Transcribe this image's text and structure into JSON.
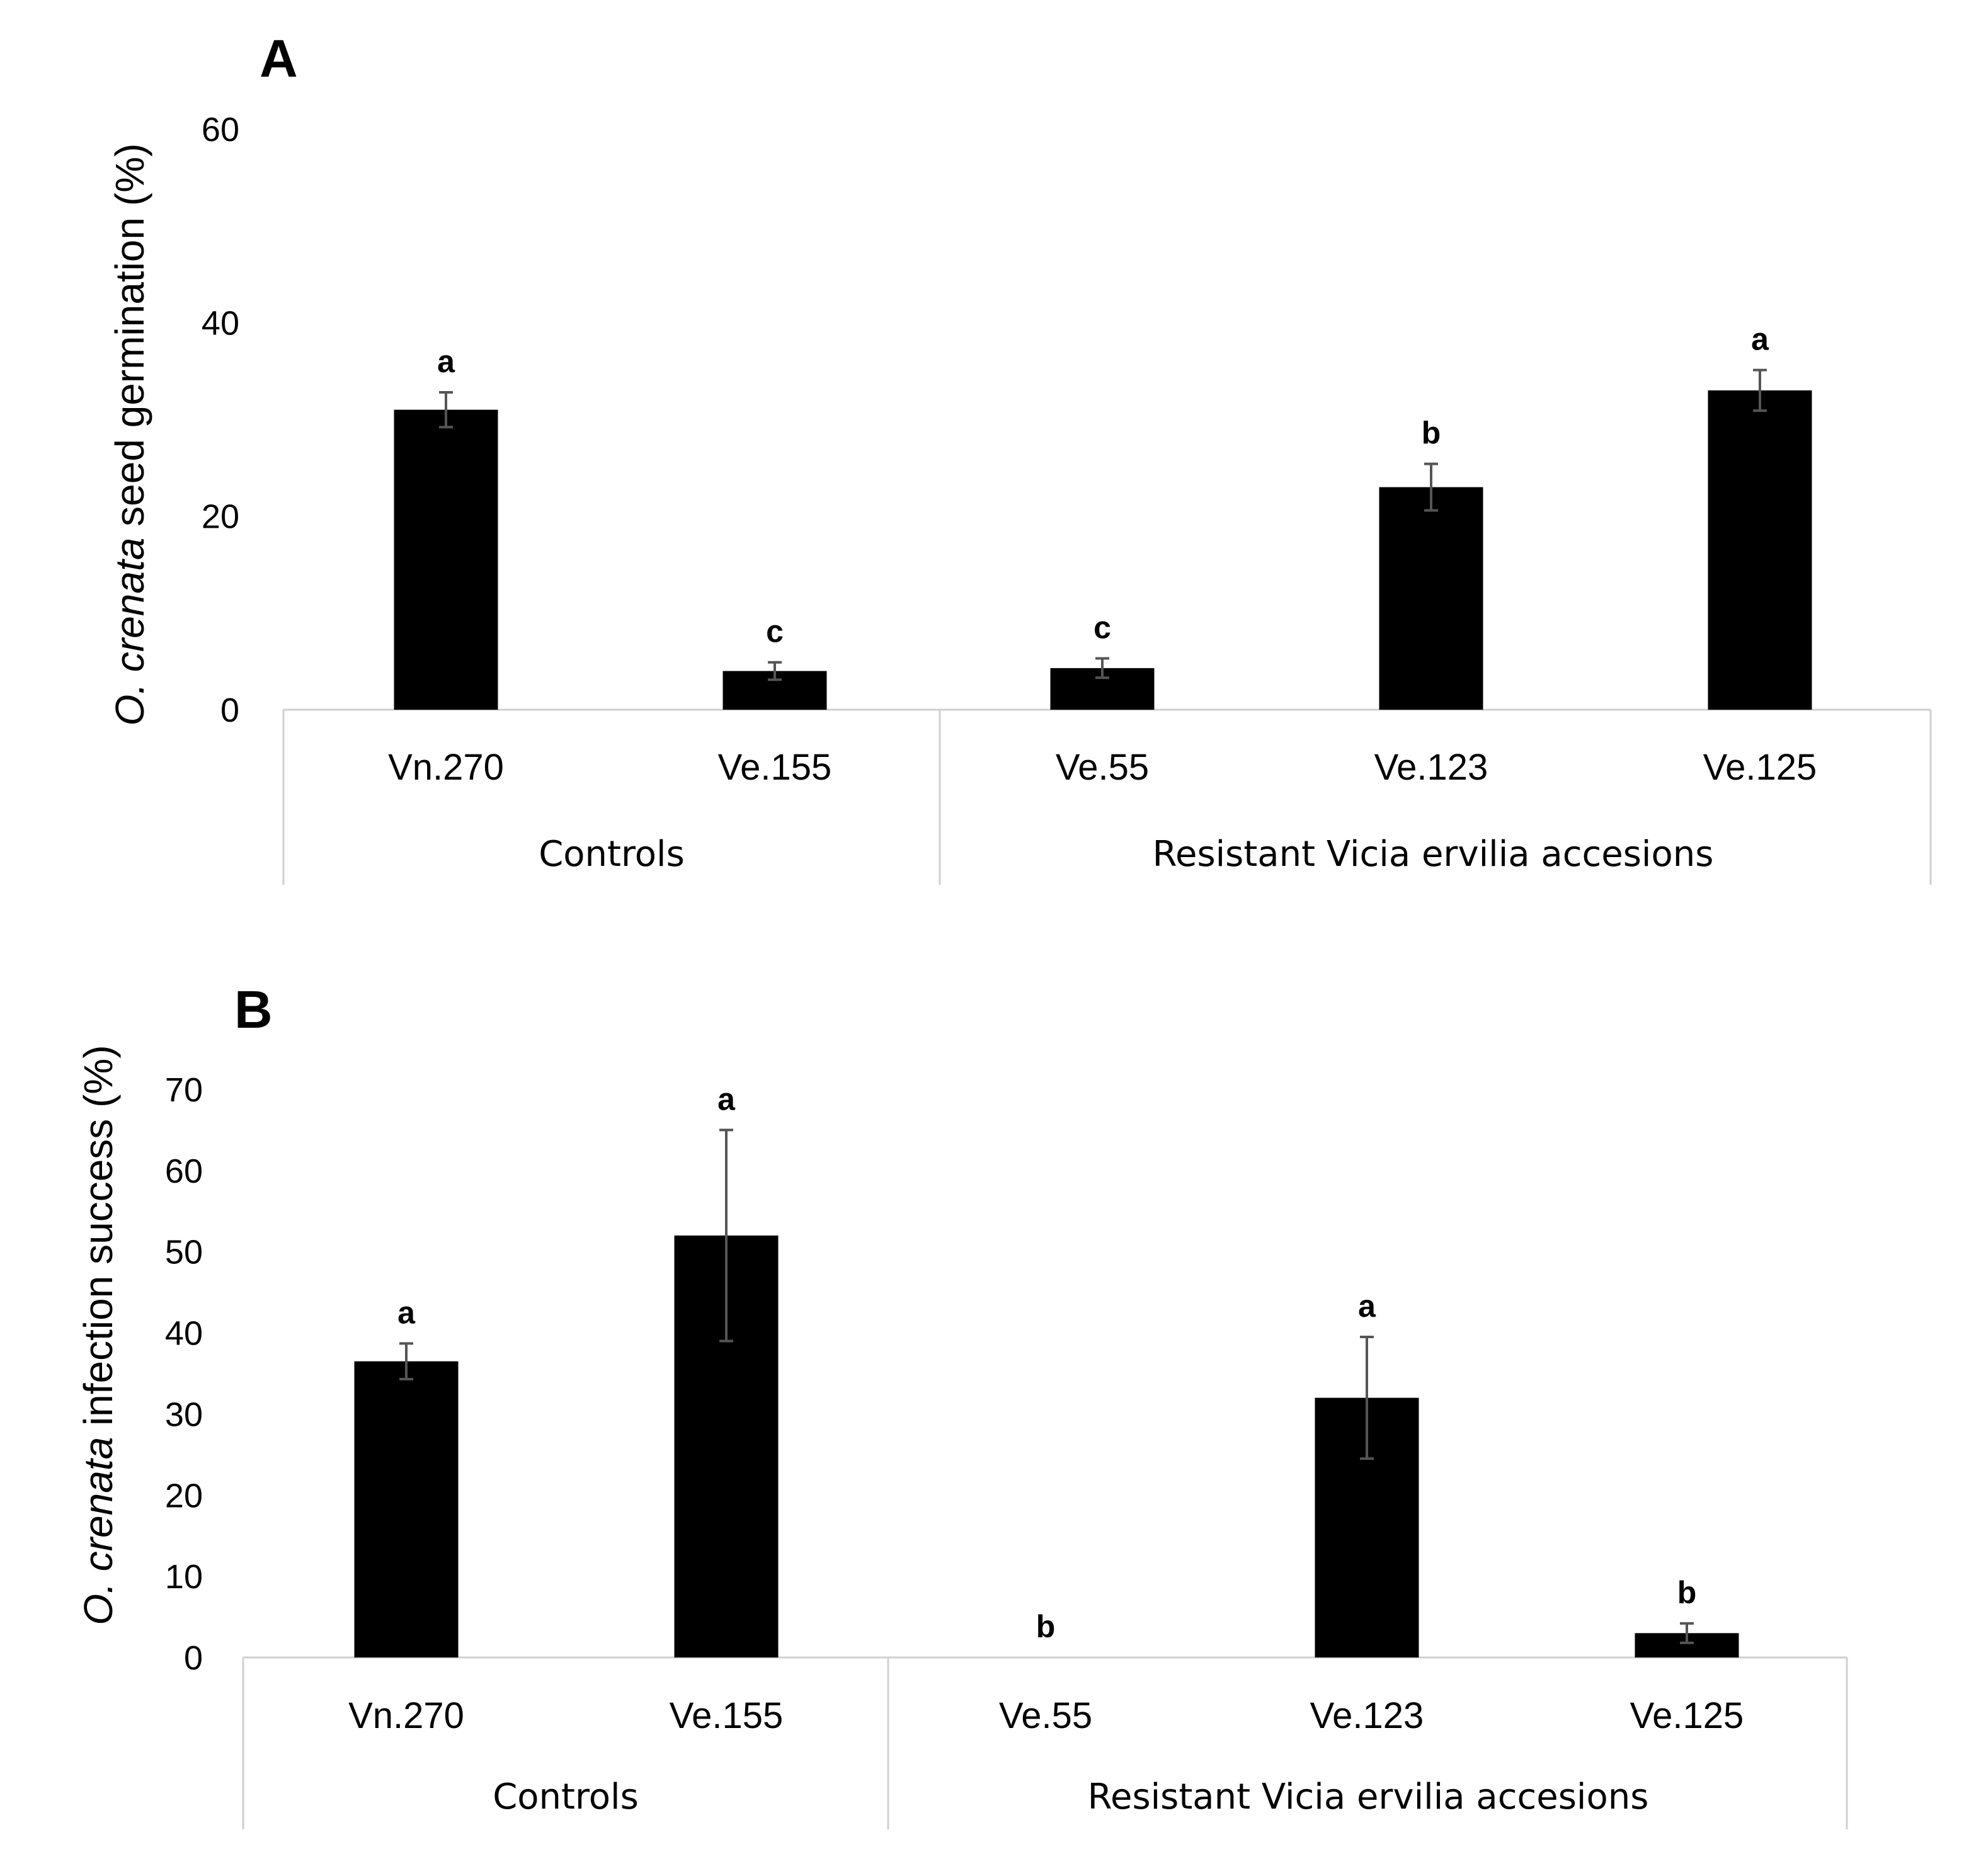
{
  "colors": {
    "bar": "#000000",
    "errorbar": "#555555",
    "axis": "#d0d0d0",
    "text": "#000000"
  },
  "chart_data": [
    {
      "type": "bar",
      "panel_label": "A",
      "ylabel_italic": "O. crenata",
      "ylabel_rest": " seed germination (%)",
      "ylim": [
        0,
        60
      ],
      "yticks": [
        "0",
        "20",
        "40",
        "60"
      ],
      "ytick_values": [
        0,
        20,
        40,
        60
      ],
      "categories": [
        "Vn.270",
        "Ve.155",
        "Ve.55",
        "Ve.123",
        "Ve.125"
      ],
      "values": [
        31,
        4,
        4.3,
        23,
        33
      ],
      "errors": [
        1.8,
        0.9,
        1.0,
        2.4,
        2.1
      ],
      "significance": [
        "a",
        "c",
        "c",
        "b",
        "a"
      ],
      "groups": [
        {
          "label": "Controls",
          "categories": [
            "Vn.270",
            "Ve.155"
          ]
        },
        {
          "label": "Resistant Vicia ervilia accesions",
          "categories": [
            "Ve.55",
            "Ve.123",
            "Ve.125"
          ]
        }
      ]
    },
    {
      "type": "bar",
      "panel_label": "B",
      "ylabel_italic": "O. crenata",
      "ylabel_rest": " infection success (%)",
      "ylim": [
        0,
        70
      ],
      "yticks": [
        "0",
        "10",
        "20",
        "30",
        "40",
        "50",
        "60",
        "70"
      ],
      "ytick_values": [
        0,
        10,
        20,
        30,
        40,
        50,
        60,
        70
      ],
      "categories": [
        "Vn.270",
        "Ve.155",
        "Ve.55",
        "Ve.123",
        "Ve.125"
      ],
      "values": [
        36.5,
        52,
        0,
        32,
        3
      ],
      "errors": [
        2.2,
        13,
        0,
        7.5,
        1.2
      ],
      "significance": [
        "a",
        "a",
        "b",
        "a",
        "b"
      ],
      "groups": [
        {
          "label": "Controls",
          "categories": [
            "Vn.270",
            "Ve.155"
          ]
        },
        {
          "label": "Resistant Vicia ervilia accesions",
          "categories": [
            "Ve.55",
            "Ve.123",
            "Ve.125"
          ]
        }
      ]
    }
  ]
}
